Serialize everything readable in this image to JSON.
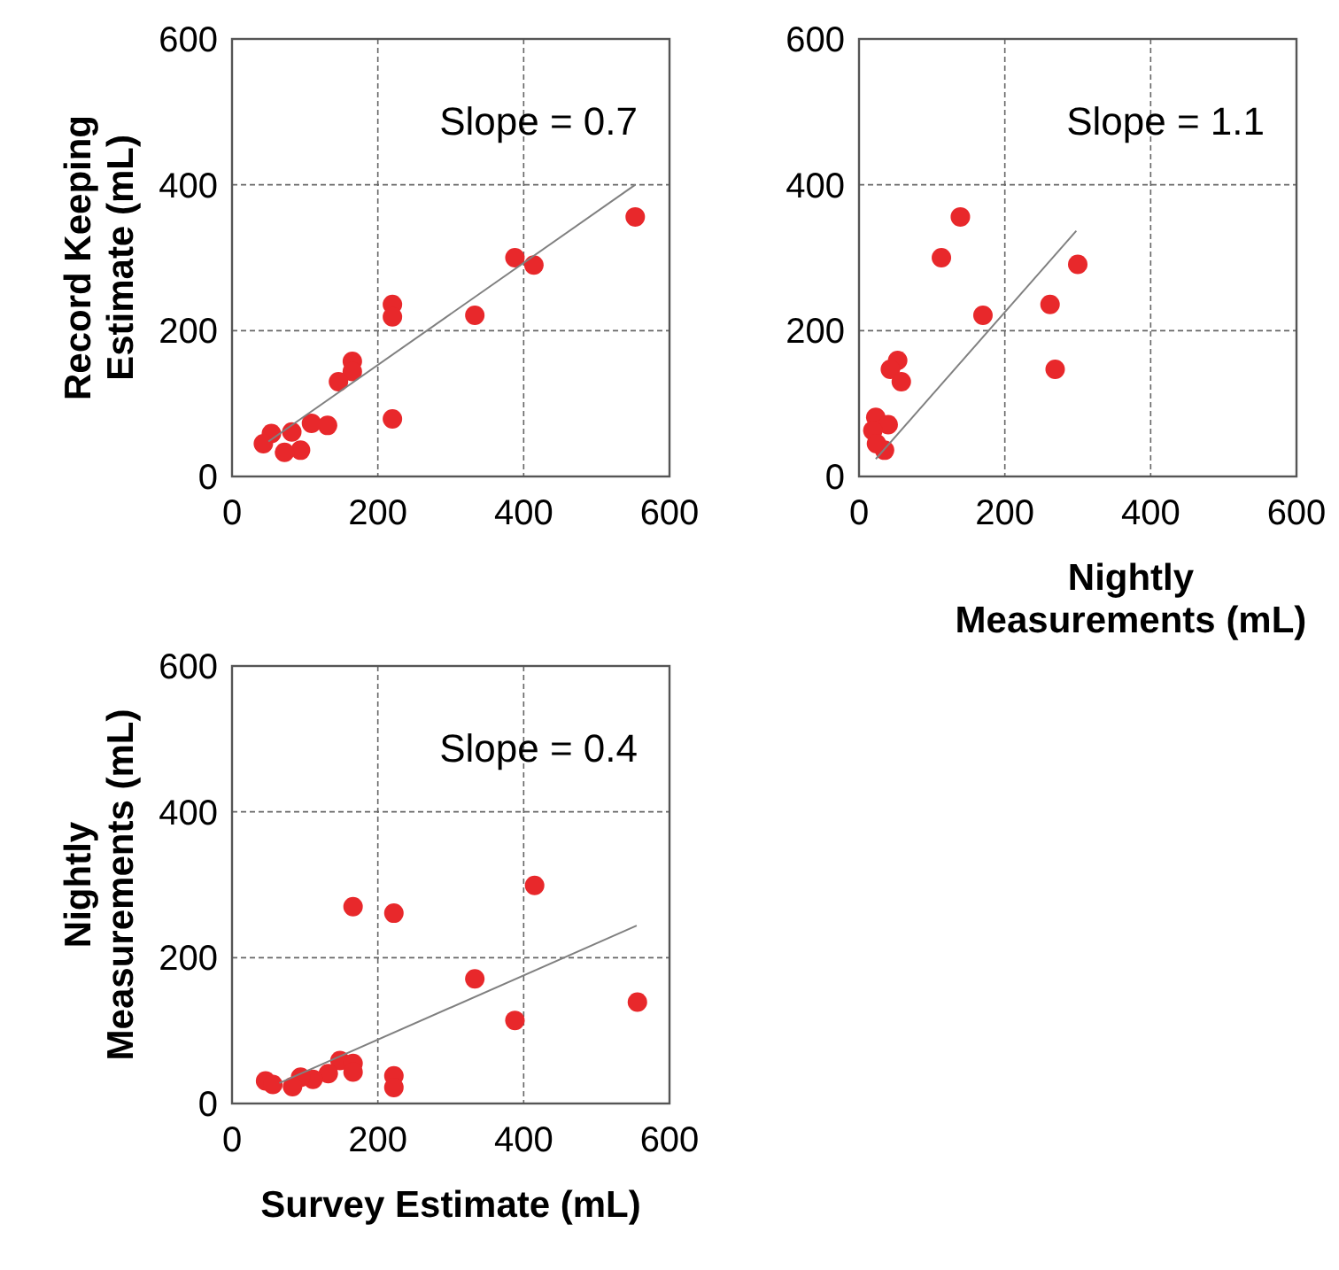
{
  "chart_data": [
    {
      "type": "scatter",
      "ylabel": "Record Keeping Estimate (mL)",
      "annotations": [
        "Slope = 0.7"
      ],
      "xlim": [
        0,
        600
      ],
      "ylim": [
        0,
        600
      ],
      "xticks": [
        0,
        200,
        400,
        600
      ],
      "yticks": [
        0,
        200,
        400,
        600
      ],
      "grid": true,
      "series": [
        {
          "marker": "circle",
          "color": "#e8282b",
          "x": [
            553,
            388,
            414,
            333,
            220,
            220,
            220,
            165,
            165,
            146,
            131,
            109,
            82,
            94,
            72,
            54,
            43
          ],
          "values": [
            356,
            300,
            290,
            221,
            236,
            219,
            79,
            158,
            144,
            130,
            70,
            73,
            61,
            36,
            33,
            59,
            45
          ]
        },
        {
          "type": "line",
          "marker": "none",
          "color": "#808080",
          "x": [
            50,
            553
          ],
          "values": [
            48,
            400
          ]
        }
      ]
    },
    {
      "type": "scatter",
      "xlabel": "Nightly Measurements (mL)",
      "annotations": [
        "Slope = 1.1"
      ],
      "xlim": [
        0,
        600
      ],
      "ylim": [
        0,
        600
      ],
      "xticks": [
        0,
        200,
        400,
        600
      ],
      "yticks": [
        0,
        200,
        400,
        600
      ],
      "grid": true,
      "series": [
        {
          "marker": "circle",
          "color": "#e8282b",
          "x": [
            139,
            113,
            170,
            300,
            262,
            269,
            53,
            43,
            58,
            23,
            40,
            19,
            35,
            24
          ],
          "values": [
            356,
            300,
            221,
            291,
            236,
            147,
            159,
            147,
            130,
            81,
            71,
            63,
            36,
            45
          ]
        },
        {
          "type": "line",
          "marker": "none",
          "color": "#808080",
          "x": [
            23,
            298
          ],
          "values": [
            24,
            337
          ]
        }
      ]
    },
    {
      "type": "scatter",
      "xlabel": "Survey Estimate (mL)",
      "ylabel": "Nightly Measurements (mL)",
      "annotations": [
        "Slope = 0.4"
      ],
      "xlim": [
        0,
        600
      ],
      "ylim": [
        0,
        600
      ],
      "xticks": [
        0,
        200,
        400,
        600
      ],
      "yticks": [
        0,
        200,
        400,
        600
      ],
      "grid": true,
      "series": [
        {
          "marker": "circle",
          "color": "#e8282b",
          "x": [
            166,
            222,
            415,
            333,
            388,
            556,
            148,
            166,
            166,
            132,
            111,
            94,
            83,
            46,
            56,
            222,
            222
          ],
          "values": [
            270,
            261,
            299,
            171,
            114,
            139,
            59,
            55,
            43,
            41,
            33,
            36,
            23,
            31,
            26,
            38,
            22
          ]
        },
        {
          "type": "line",
          "marker": "none",
          "color": "#808080",
          "x": [
            65,
            555
          ],
          "values": [
            28,
            244
          ]
        }
      ]
    }
  ]
}
